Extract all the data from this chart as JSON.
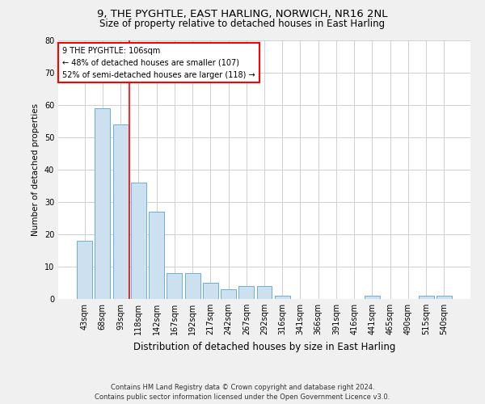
{
  "title": "9, THE PYGHTLE, EAST HARLING, NORWICH, NR16 2NL",
  "subtitle": "Size of property relative to detached houses in East Harling",
  "xlabel": "Distribution of detached houses by size in East Harling",
  "ylabel": "Number of detached properties",
  "footer_line1": "Contains HM Land Registry data © Crown copyright and database right 2024.",
  "footer_line2": "Contains public sector information licensed under the Open Government Licence v3.0.",
  "categories": [
    "43sqm",
    "68sqm",
    "93sqm",
    "118sqm",
    "142sqm",
    "167sqm",
    "192sqm",
    "217sqm",
    "242sqm",
    "267sqm",
    "292sqm",
    "316sqm",
    "341sqm",
    "366sqm",
    "391sqm",
    "416sqm",
    "441sqm",
    "465sqm",
    "490sqm",
    "515sqm",
    "540sqm"
  ],
  "values": [
    18,
    59,
    54,
    36,
    27,
    8,
    8,
    5,
    3,
    4,
    4,
    1,
    0,
    0,
    0,
    0,
    1,
    0,
    0,
    1,
    1
  ],
  "bar_color": "#cce0f0",
  "bar_edge_color": "#6aaed6",
  "grid_color": "#c8c8d0",
  "vline_x": 2.5,
  "vline_color": "red",
  "annotation_text": "9 THE PYGHTLE: 106sqm\n← 48% of detached houses are smaller (107)\n52% of semi-detached houses are larger (118) →",
  "annotation_box_color": "white",
  "annotation_box_edge": "red",
  "ylim": [
    0,
    80
  ],
  "yticks": [
    0,
    10,
    20,
    30,
    40,
    50,
    60,
    70,
    80
  ],
  "background_color": "#f0f0f0",
  "plot_background": "white",
  "title_fontsize": 9.5,
  "subtitle_fontsize": 8.5,
  "xlabel_fontsize": 8.5,
  "ylabel_fontsize": 7.5,
  "tick_fontsize": 7,
  "annotation_fontsize": 7,
  "footer_fontsize": 6
}
